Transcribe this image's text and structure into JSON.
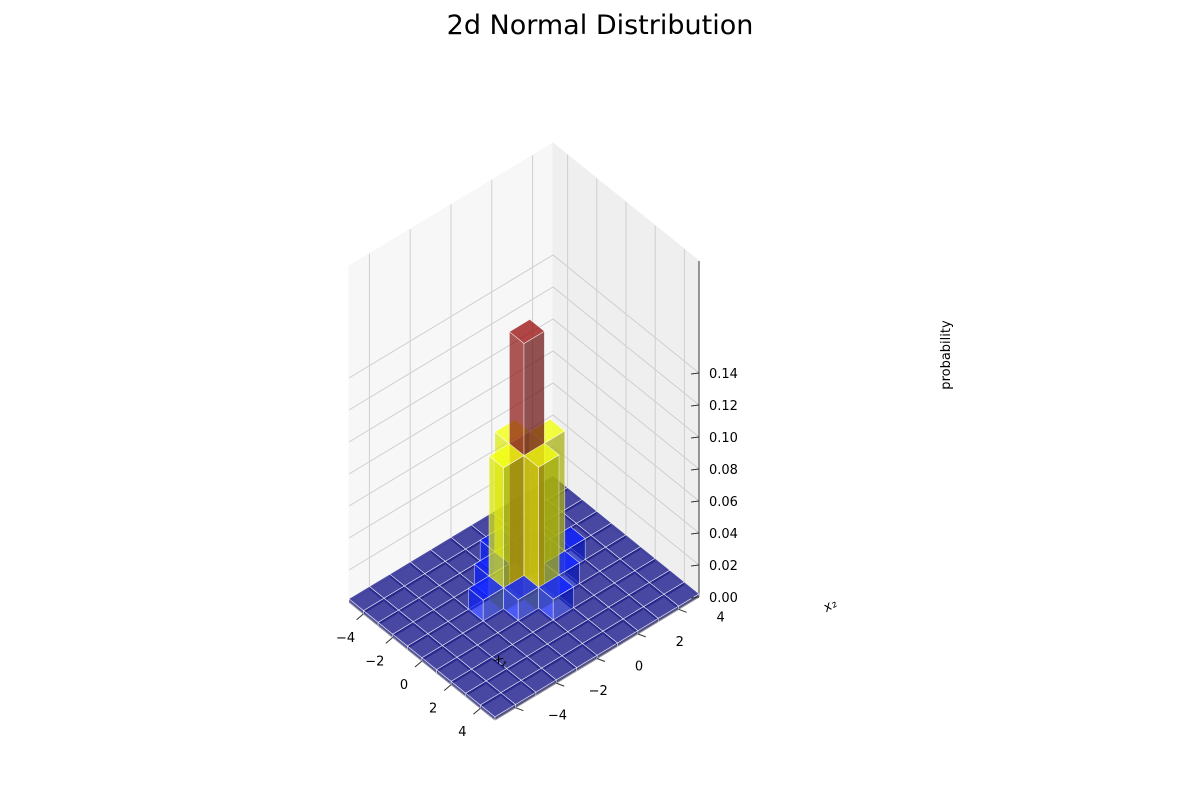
{
  "chart_data": {
    "type": "bar3d",
    "title": "2d Normal Distribution",
    "xlabel": "x₁",
    "ylabel": "x₂",
    "zlabel": "probability",
    "xlim": [
      -5,
      5
    ],
    "ylim": [
      -5,
      5
    ],
    "zlim": [
      0,
      0.15
    ],
    "xticks": [
      -4,
      -2,
      0,
      2,
      4
    ],
    "yticks": [
      -4,
      -2,
      0,
      2,
      4
    ],
    "zticks": [
      0.0,
      0.02,
      0.04,
      0.06,
      0.08,
      0.1,
      0.12,
      0.14
    ],
    "zticklabels": [
      "0.00",
      "0.02",
      "0.04",
      "0.06",
      "0.08",
      "0.10",
      "0.12",
      "0.14"
    ],
    "grid": true,
    "x_bin_edges": [
      -5,
      -4,
      -3,
      -2,
      -1,
      0,
      1,
      2,
      3,
      4,
      5
    ],
    "y_bin_edges": [
      -5,
      -4,
      -3,
      -2,
      -1,
      0,
      1,
      2,
      3,
      4,
      5
    ],
    "bars": [
      {
        "x": -1,
        "y": 0,
        "z": 0.16
      },
      {
        "x": -2,
        "y": 0,
        "z": 0.09
      },
      {
        "x": -1,
        "y": -1,
        "z": 0.09
      },
      {
        "x": -1,
        "y": 1,
        "z": 0.09
      },
      {
        "x": 0,
        "y": 0,
        "z": 0.09
      },
      {
        "x": -2,
        "y": -1,
        "z": 0.015
      },
      {
        "x": -2,
        "y": 1,
        "z": 0.015
      },
      {
        "x": 0,
        "y": -1,
        "z": 0.015
      },
      {
        "x": 0,
        "y": 1,
        "z": 0.015
      },
      {
        "x": -3,
        "y": 0,
        "z": 0.015
      },
      {
        "x": 1,
        "y": 0,
        "z": 0.015
      },
      {
        "x": -1,
        "y": -2,
        "z": 0.015
      },
      {
        "x": -1,
        "y": 2,
        "z": 0.015
      }
    ],
    "base_bar_value": 0.002,
    "color_scale": [
      {
        "max": 0.005,
        "color": "#1a1a80"
      },
      {
        "max": 0.05,
        "color": "#0b1ef5"
      },
      {
        "max": 0.12,
        "color": "#dde80f"
      },
      {
        "max": 1.0,
        "color": "#8e1616"
      }
    ],
    "colors": {
      "pane": "#f2f2f2",
      "grid": "#cfcfcf",
      "edge": "#ffffff"
    }
  }
}
